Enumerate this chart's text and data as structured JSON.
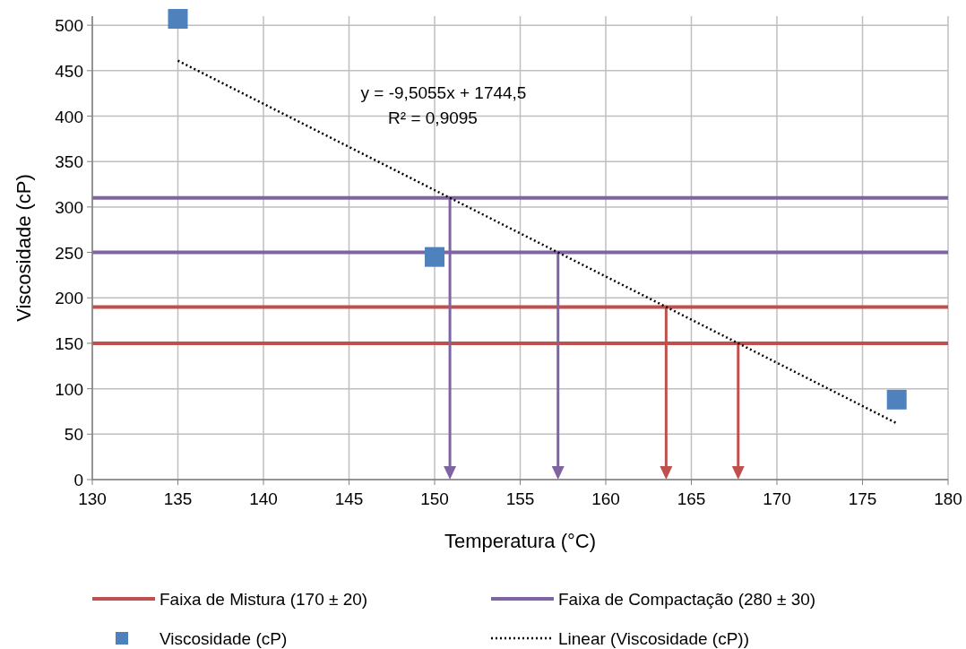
{
  "chart_data": {
    "type": "scatter",
    "xlabel": "Temperatura (°C)",
    "ylabel": "Viscosidade (cP)",
    "xlim": [
      130,
      180
    ],
    "xticks": [
      130,
      135,
      140,
      145,
      150,
      155,
      160,
      165,
      170,
      175,
      180
    ],
    "ylim": [
      0,
      510
    ],
    "yticks": [
      0,
      50,
      100,
      150,
      200,
      250,
      300,
      350,
      400,
      450,
      500
    ],
    "grid": true,
    "legend": "bottom",
    "series": [
      {
        "name": "Viscosidade (cP)",
        "color": "#4f81bd",
        "marker": "square",
        "x": [
          135,
          150,
          177
        ],
        "values": [
          507,
          245,
          88
        ]
      },
      {
        "name": "Linear (Viscosidade (cP))",
        "type": "line",
        "color": "#000000",
        "line_style": "dotted",
        "x": [
          135,
          177
        ],
        "values": [
          461,
          62
        ]
      }
    ],
    "ref_lines": [
      {
        "axis": "y",
        "value": 190,
        "label": "Faixa de Mistura (170 ± 20)",
        "color": "#c0504d"
      },
      {
        "axis": "y",
        "value": 150,
        "color": "#c0504d"
      },
      {
        "axis": "y",
        "value": 310,
        "label": "Faixa de Compactação (280 ± 30)",
        "color": "#8064a2"
      },
      {
        "axis": "y",
        "value": 250,
        "color": "#8064a2"
      }
    ],
    "annotations": [
      "y = -9,5055x + 1744,5",
      "R² = 0,9095"
    ]
  }
}
